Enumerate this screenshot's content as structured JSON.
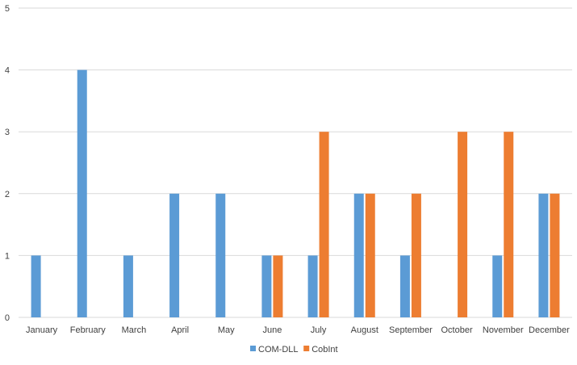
{
  "chart_data": {
    "type": "bar",
    "categories": [
      "January",
      "February",
      "March",
      "April",
      "May",
      "June",
      "July",
      "August",
      "September",
      "October",
      "November",
      "December"
    ],
    "series": [
      {
        "name": "COM-DLL",
        "color": "#5B9BD5",
        "values": [
          1,
          4,
          1,
          2,
          2,
          1,
          1,
          2,
          1,
          0,
          1,
          2
        ]
      },
      {
        "name": "CobInt",
        "color": "#ED7D31",
        "values": [
          0,
          0,
          0,
          0,
          0,
          1,
          3,
          2,
          2,
          3,
          3,
          2
        ]
      }
    ],
    "ylim": [
      0,
      5
    ],
    "yticks": [
      "0",
      "1",
      "2",
      "3",
      "4",
      "5"
    ],
    "grid": true,
    "legend_position": "bottom"
  }
}
